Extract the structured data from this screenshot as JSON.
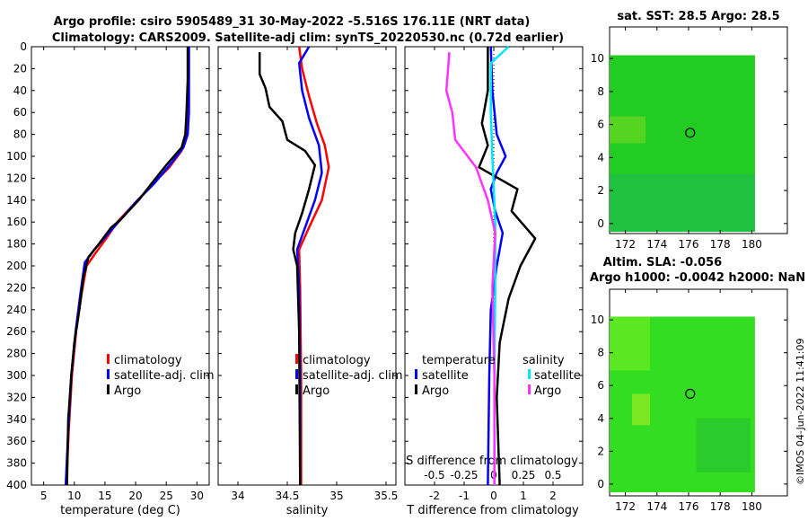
{
  "titles": {
    "main1": "Argo profile: csiro 5905489_31 30-May-2022 -5.516S 176.11E (NRT data)",
    "main2": "Climatology: CARS2009. Satellite-adj clim: synTS_20220530.nc (0.72d earlier)",
    "sst_map": "sat. SST: 28.5 Argo: 28.5",
    "sla_map1": "Altim. SLA: -0.056",
    "sla_map2": "Argo h1000: -0.0042 h2000: NaN",
    "credit": "©IMOS 04-Jun-2022 11:41:09"
  },
  "colors": {
    "climatology": "#ff0000",
    "satellite": "#0000ff",
    "argo": "#000000",
    "salinity_sat": "#00e5ff",
    "salinity_argo": "#ff33ff",
    "map_green": "#22cc22"
  },
  "chart_data": [
    {
      "type": "line",
      "id": "temperature",
      "xlabel": "temperature (deg C)",
      "xlim": [
        3,
        32
      ],
      "ylim": [
        400,
        0
      ],
      "xticks": [
        "5",
        "10",
        "15",
        "20",
        "25",
        "30"
      ],
      "xtick_values": [
        5,
        10,
        15,
        20,
        25,
        30
      ],
      "yticks": [
        "0",
        "20",
        "40",
        "60",
        "80",
        "100",
        "120",
        "140",
        "160",
        "180",
        "200",
        "220",
        "240",
        "260",
        "280",
        "300",
        "320",
        "340",
        "360",
        "380",
        "400"
      ],
      "legend": [
        "climatology",
        "satellite-adj. clim",
        "Argo"
      ],
      "series": [
        {
          "name": "climatology",
          "color": "red",
          "points": [
            [
              28.6,
              0
            ],
            [
              28.6,
              30
            ],
            [
              28.6,
              60
            ],
            [
              28.3,
              80
            ],
            [
              27.5,
              95
            ],
            [
              25.5,
              110
            ],
            [
              22,
              130
            ],
            [
              19.5,
              145
            ],
            [
              17,
              160
            ],
            [
              15.2,
              175
            ],
            [
              13.5,
              188
            ],
            [
              12,
              200
            ],
            [
              11.2,
              225
            ],
            [
              10.3,
              260
            ],
            [
              9.6,
              300
            ],
            [
              9.1,
              350
            ],
            [
              8.7,
              400
            ]
          ]
        },
        {
          "name": "satellite-adj. clim",
          "color": "blue",
          "points": [
            [
              28.7,
              0
            ],
            [
              28.7,
              30
            ],
            [
              28.7,
              60
            ],
            [
              28.5,
              80
            ],
            [
              27.8,
              92
            ],
            [
              26,
              105
            ],
            [
              23,
              125
            ],
            [
              20,
              142
            ],
            [
              17.5,
              158
            ],
            [
              15.3,
              172
            ],
            [
              13.3,
              185
            ],
            [
              11.7,
              197
            ],
            [
              11,
              225
            ],
            [
              10.2,
              260
            ],
            [
              9.5,
              300
            ],
            [
              9,
              350
            ],
            [
              8.6,
              400
            ]
          ]
        },
        {
          "name": "Argo",
          "color": "black",
          "points": [
            [
              28.5,
              0
            ],
            [
              28.5,
              30
            ],
            [
              28.3,
              60
            ],
            [
              28.1,
              80
            ],
            [
              27.5,
              92
            ],
            [
              25,
              108
            ],
            [
              23,
              122
            ],
            [
              20.5,
              140
            ],
            [
              17.5,
              158
            ],
            [
              16,
              165
            ],
            [
              14,
              180
            ],
            [
              12.3,
              192
            ],
            [
              11.5,
              210
            ],
            [
              10.8,
              240
            ],
            [
              10,
              270
            ],
            [
              9.5,
              300
            ],
            [
              9,
              340
            ],
            [
              8.8,
              400
            ]
          ]
        }
      ]
    },
    {
      "type": "line",
      "id": "salinity",
      "xlabel": "salinity",
      "xlim": [
        33.8,
        35.6
      ],
      "ylim": [
        400,
        0
      ],
      "xticks": [
        "34",
        "34.5",
        "35",
        "35.5"
      ],
      "xtick_values": [
        34,
        34.5,
        35,
        35.5
      ],
      "legend": [
        "climatology",
        "satellite-adj. clim",
        "Argo"
      ],
      "series": [
        {
          "name": "climatology",
          "color": "red",
          "points": [
            [
              34.62,
              0
            ],
            [
              34.65,
              20
            ],
            [
              34.72,
              45
            ],
            [
              34.8,
              70
            ],
            [
              34.88,
              90
            ],
            [
              34.92,
              110
            ],
            [
              34.85,
              140
            ],
            [
              34.72,
              165
            ],
            [
              34.62,
              185
            ],
            [
              34.63,
              220
            ],
            [
              34.64,
              300
            ],
            [
              34.64,
              400
            ]
          ]
        },
        {
          "name": "satellite-adj. clim",
          "color": "blue",
          "points": [
            [
              34.72,
              0
            ],
            [
              34.62,
              15
            ],
            [
              34.65,
              40
            ],
            [
              34.72,
              65
            ],
            [
              34.82,
              90
            ],
            [
              34.85,
              115
            ],
            [
              34.78,
              140
            ],
            [
              34.68,
              165
            ],
            [
              34.6,
              185
            ],
            [
              34.62,
              220
            ],
            [
              34.63,
              300
            ],
            [
              34.63,
              400
            ]
          ]
        },
        {
          "name": "Argo",
          "color": "black",
          "points": [
            [
              34.22,
              5
            ],
            [
              34.22,
              25
            ],
            [
              34.28,
              38
            ],
            [
              34.32,
              55
            ],
            [
              34.45,
              68
            ],
            [
              34.5,
              85
            ],
            [
              34.68,
              95
            ],
            [
              34.78,
              108
            ],
            [
              34.72,
              130
            ],
            [
              34.65,
              152
            ],
            [
              34.58,
              170
            ],
            [
              34.56,
              185
            ],
            [
              34.6,
              200
            ],
            [
              34.62,
              260
            ],
            [
              34.63,
              400
            ]
          ]
        }
      ]
    },
    {
      "type": "line",
      "id": "difference",
      "xlabel": "T difference from climatology",
      "xlabel_top": "S difference from climatology",
      "xlim": [
        -3,
        3
      ],
      "ylim": [
        400,
        0
      ],
      "xticks": [
        "-2",
        "-1",
        "0",
        "1",
        "2"
      ],
      "xtick_values": [
        -2,
        -1,
        0,
        1,
        2
      ],
      "sticks": [
        "-0.5",
        "-0.25",
        "0",
        "0.25",
        "0.5"
      ],
      "stick_values": [
        -0.5,
        -0.25,
        0,
        0.25,
        0.5
      ],
      "legend_left_title": "temperature",
      "legend_right_title": "salinity",
      "legend": [
        "satellite",
        "Argo",
        "satellite",
        "Argo"
      ],
      "series": [
        {
          "name": "T satellite",
          "color": "blue",
          "points": [
            [
              -0.1,
              0
            ],
            [
              -0.05,
              40
            ],
            [
              0.1,
              80
            ],
            [
              0.4,
              100
            ],
            [
              0.1,
              115
            ],
            [
              -0.1,
              130
            ],
            [
              0.05,
              150
            ],
            [
              0.3,
              170
            ],
            [
              0.1,
              200
            ],
            [
              -0.1,
              240
            ],
            [
              -0.15,
              300
            ],
            [
              -0.2,
              400
            ]
          ]
        },
        {
          "name": "T Argo",
          "color": "black",
          "points": [
            [
              -0.2,
              0
            ],
            [
              -0.2,
              40
            ],
            [
              -0.4,
              70
            ],
            [
              -0.2,
              90
            ],
            [
              -0.5,
              110
            ],
            [
              0.8,
              130
            ],
            [
              0.6,
              150
            ],
            [
              1.4,
              175
            ],
            [
              0.9,
              200
            ],
            [
              0.5,
              230
            ],
            [
              0.2,
              270
            ],
            [
              0.1,
              320
            ],
            [
              0.2,
              400
            ]
          ]
        },
        {
          "name": "S satellite",
          "color": "cyan",
          "points": [
            [
              0.5,
              0
            ],
            [
              -0.1,
              15
            ],
            [
              -0.1,
              60
            ],
            [
              -0.05,
              100
            ],
            [
              0.05,
              160
            ],
            [
              0.05,
              220
            ],
            [
              0.02,
              300
            ],
            [
              0.02,
              400
            ]
          ]
        },
        {
          "name": "S Argo",
          "color": "magenta",
          "points": [
            [
              -1.5,
              5
            ],
            [
              -1.6,
              40
            ],
            [
              -1.4,
              60
            ],
            [
              -1.3,
              85
            ],
            [
              -0.6,
              110
            ],
            [
              -0.2,
              140
            ],
            [
              0.05,
              170
            ],
            [
              -0.05,
              220
            ],
            [
              0.02,
              300
            ],
            [
              0.02,
              400
            ]
          ]
        }
      ]
    },
    {
      "type": "heatmap",
      "id": "sst_map",
      "xticks": [
        "172",
        "174",
        "176",
        "178",
        "180"
      ],
      "yticks": [
        "0",
        "2",
        "4",
        "6",
        "8",
        "10"
      ],
      "xlim": [
        171,
        181
      ],
      "ylim": [
        -0.5,
        10.5
      ],
      "marker": [
        176.1,
        5.5
      ]
    },
    {
      "type": "heatmap",
      "id": "sla_map",
      "xticks": [
        "172",
        "174",
        "176",
        "178",
        "180"
      ],
      "yticks": [
        "0",
        "2",
        "4",
        "6",
        "8",
        "10"
      ],
      "xlim": [
        171,
        181
      ],
      "ylim": [
        -0.5,
        10.5
      ],
      "marker": [
        176.1,
        5.5
      ]
    }
  ]
}
